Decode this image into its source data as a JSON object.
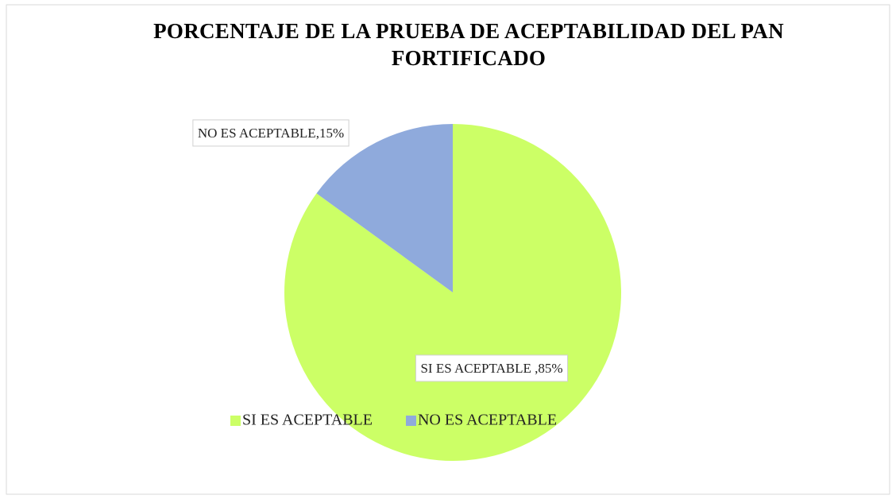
{
  "chart_data": {
    "type": "pie",
    "title": "PORCENTAJE DE LA PRUEBA DE ACEPTABILIDAD DEL PAN FORTIFICADO",
    "categories": [
      "SI ES ACEPTABLE",
      "NO ES ACEPTABLE"
    ],
    "values": [
      85,
      15
    ],
    "value_labels": [
      "SI ES ACEPTABLE ,85%",
      "NO ES ACEPTABLE,15%"
    ],
    "colors": [
      "#ccff66",
      "#8faadc"
    ],
    "legend": "bottom"
  }
}
